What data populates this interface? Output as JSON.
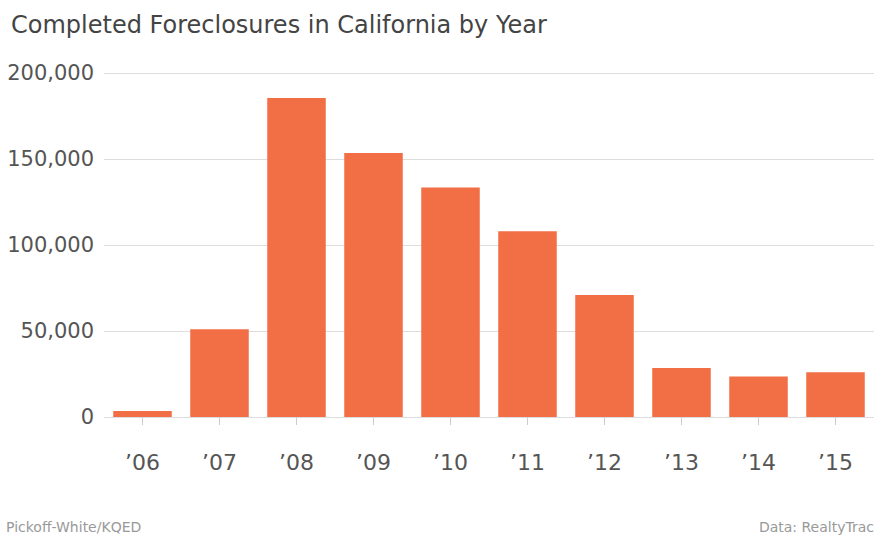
{
  "chart_data": {
    "type": "bar",
    "title": "Completed Foreclosures in California by Year",
    "categories": [
      "’06",
      "’07",
      "’08",
      "’09",
      "’10",
      "’11",
      "’12",
      "’13",
      "’14",
      "’15"
    ],
    "values": [
      3500,
      51000,
      185500,
      153500,
      133500,
      108000,
      71000,
      28500,
      23500,
      26000
    ],
    "color": "#f26e45",
    "ylim": [
      0,
      200000
    ],
    "yticks": [
      0,
      {
        "value": 50000,
        "label": "50,000"
      },
      {
        "value": 100000,
        "label": "100,000"
      },
      {
        "value": 150000,
        "label": "150,000"
      },
      {
        "value": 200000,
        "label": "200,000"
      }
    ],
    "grid": true,
    "annotations": [
      "Pickoff-White/KQED",
      "Data: RealtyTrac"
    ]
  }
}
